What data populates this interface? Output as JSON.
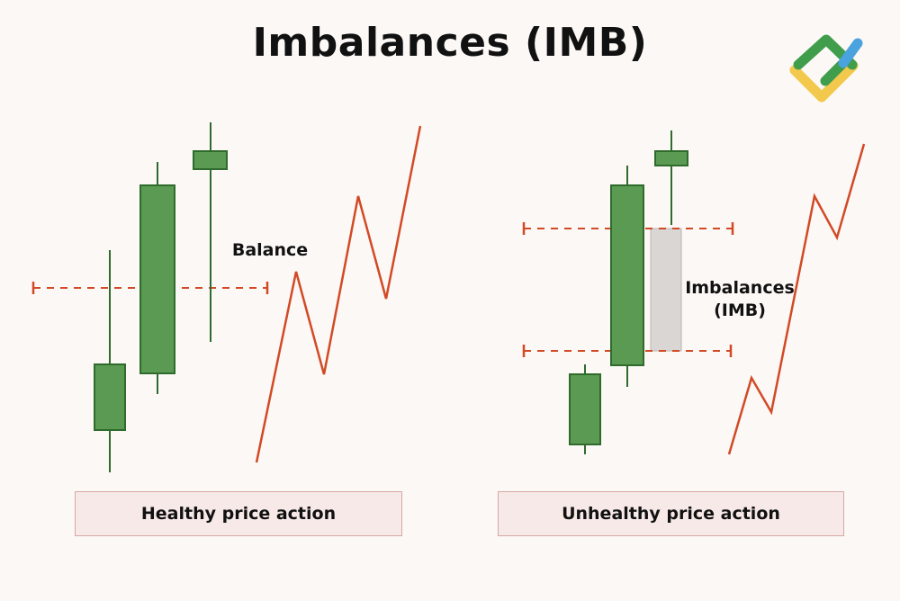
{
  "title": "Imbalances (IMB)",
  "labels": {
    "balance": "Balance",
    "imbalance_line1": "Imbalances",
    "imbalance_line2": "(IMB)"
  },
  "captions": {
    "healthy": "Healthy price action",
    "unhealthy": "Unhealthy price action"
  },
  "colors": {
    "background": "#fcf8f6",
    "candle_fill": "#5a9a52",
    "candle_border": "#2f6b2c",
    "zigzag": "#d24a25",
    "dashed_line": "#d24a25",
    "imbalance_zone": "#d9d6d4",
    "logo_green": "#3f9d4b",
    "logo_yellow": "#f2c94c",
    "logo_blue": "#4aa3df"
  },
  "icons": {
    "logo": "brand-logo-icon"
  }
}
